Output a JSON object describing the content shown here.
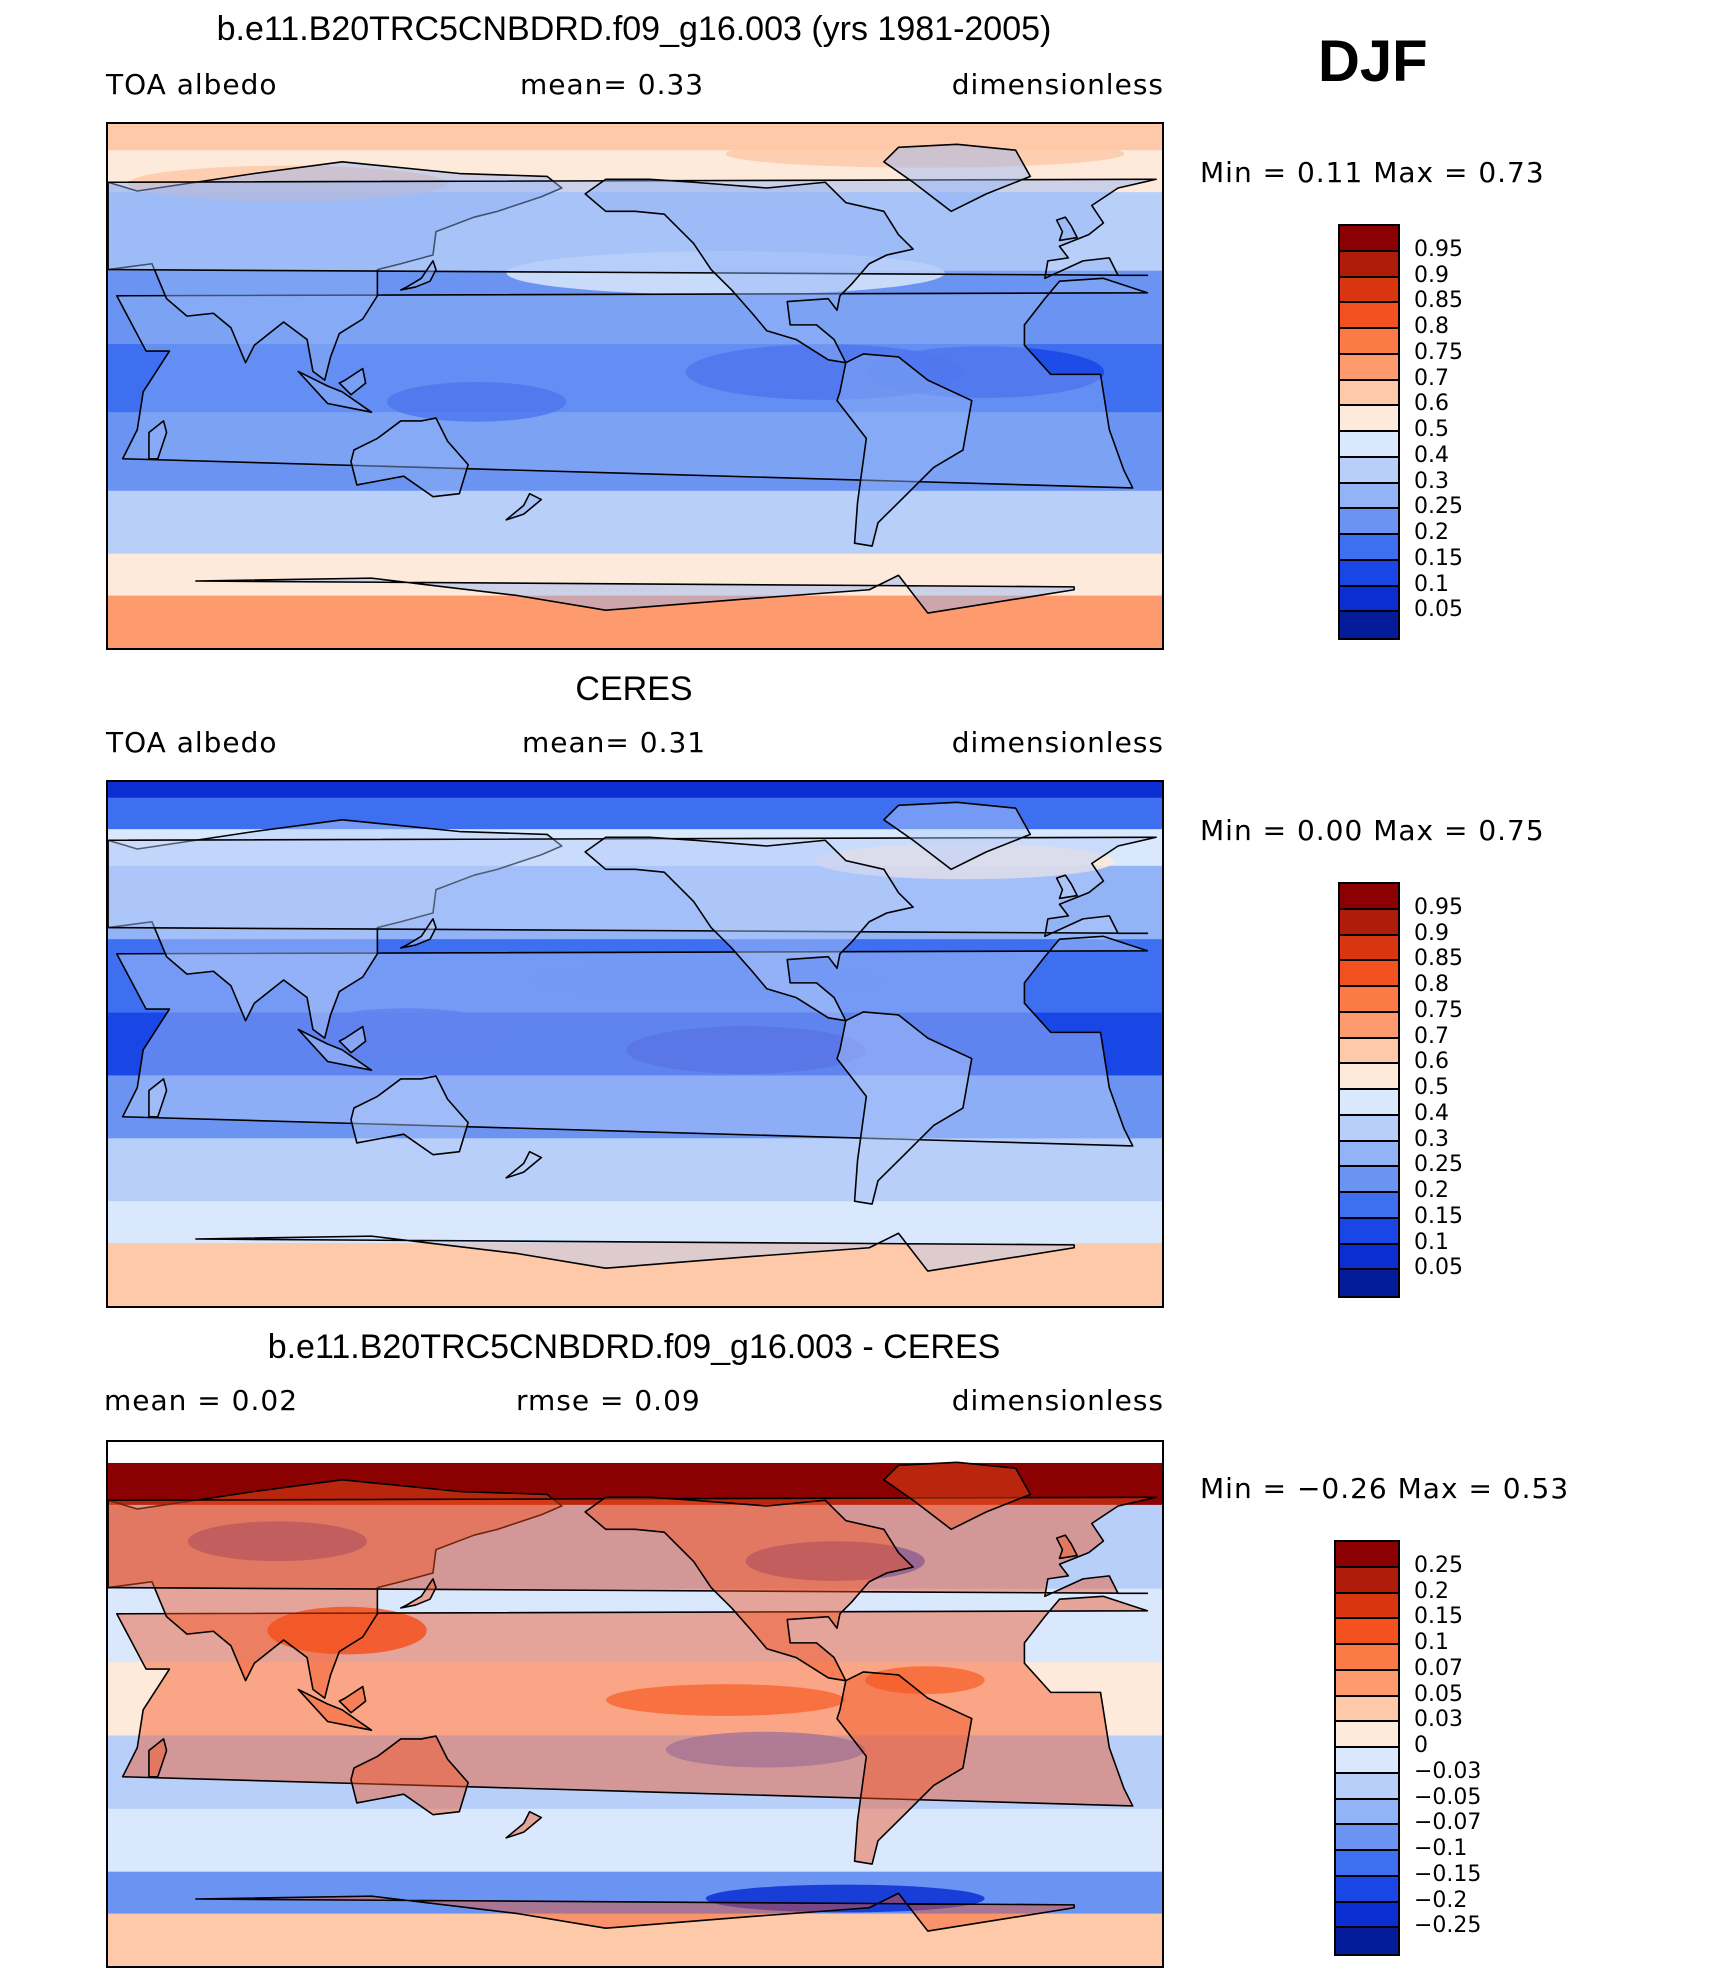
{
  "season": "DJF",
  "panels": [
    {
      "title": "b.e11.B20TRC5CNBDRD.f09_g16.003 (yrs 1981-2005)",
      "left_text": "TOA  albedo",
      "center_text": "mean=    0.33",
      "right_text": "dimensionless",
      "minmax": "Min  =      0.11  Max  =      0.73",
      "variant": "model"
    },
    {
      "title": "CERES",
      "left_text": "TOA  albedo",
      "center_text": "mean=    0.31",
      "right_text": "dimensionless",
      "minmax": "Min  =      0.00  Max  =      0.75",
      "variant": "obs"
    },
    {
      "title": "b.e11.B20TRC5CNBDRD.f09_g16.003 - CERES",
      "left_text": "mean  =      0.02",
      "center_text": "rmse  =      0.09",
      "right_text": "dimensionless",
      "minmax": "Min  =    −0.26  Max  =      0.53",
      "variant": "diff"
    }
  ],
  "colorbars": {
    "albedo": {
      "labels": [
        "0.95",
        "0.9",
        "0.85",
        "0.8",
        "0.75",
        "0.7",
        "0.6",
        "0.5",
        "0.4",
        "0.3",
        "0.25",
        "0.2",
        "0.15",
        "0.1",
        "0.05"
      ],
      "colors": [
        "#8b0000",
        "#b01c0a",
        "#d93610",
        "#f35220",
        "#fb7a45",
        "#fd9b6e",
        "#fdc9a8",
        "#feeadb",
        "#d9e8fd",
        "#b8cffa",
        "#93b3f7",
        "#6b94f2",
        "#3d6ff0",
        "#1947e6",
        "#0a2ed2",
        "#041c99"
      ]
    },
    "diff": {
      "labels": [
        "0.25",
        "0.2",
        "0.15",
        "0.1",
        "0.07",
        "0.05",
        "0.03",
        "0",
        "−0.03",
        "−0.05",
        "−0.07",
        "−0.1",
        "−0.15",
        "−0.2",
        "−0.25"
      ],
      "colors": [
        "#8b0000",
        "#b01c0a",
        "#d93610",
        "#f35220",
        "#fb7a45",
        "#fd9b6e",
        "#fdc9a8",
        "#feeadb",
        "#d9e8fd",
        "#b8cffa",
        "#93b3f7",
        "#6b94f2",
        "#3d6ff0",
        "#1947e6",
        "#0a2ed2",
        "#041c99"
      ]
    }
  }
}
